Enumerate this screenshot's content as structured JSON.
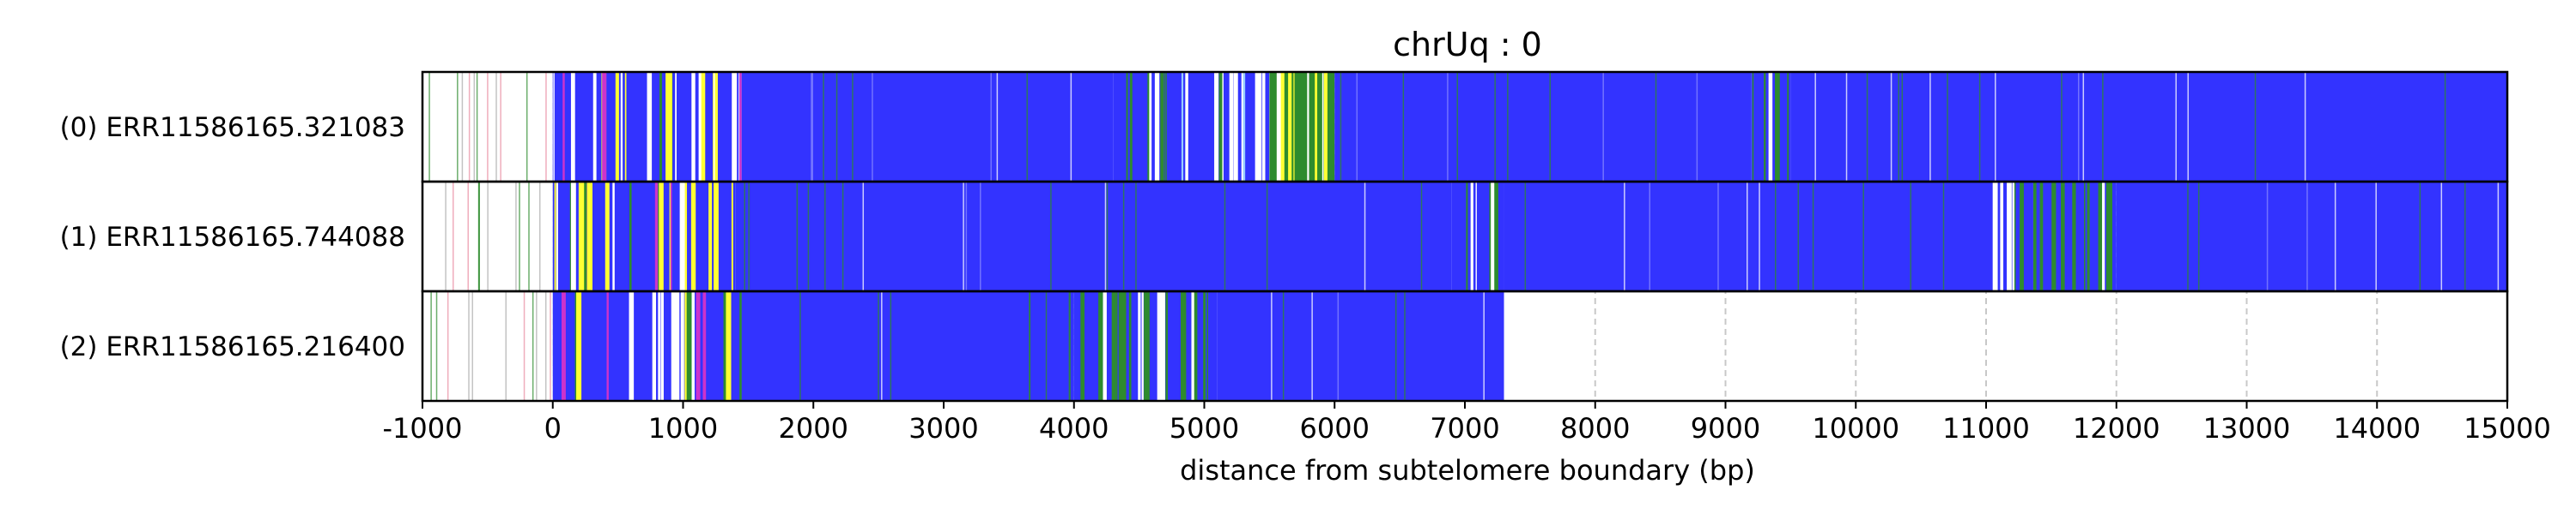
{
  "chart_data": {
    "type": "heatmap",
    "title": "chrUq : 0",
    "xlabel": "distance from subtelomere boundary (bp)",
    "ylabel": "",
    "xlim": [
      -1000,
      15000
    ],
    "xticks": [
      -1000,
      0,
      1000,
      2000,
      3000,
      4000,
      5000,
      6000,
      7000,
      8000,
      9000,
      10000,
      11000,
      12000,
      13000,
      14000,
      15000
    ],
    "grid": "vertical dashed lines at x tick positions",
    "colors": {
      "blue": "#3333ff",
      "green": "#2e8b2e",
      "yellow": "#ffff33",
      "magenta": "#cc33cc",
      "white": "#ffffff",
      "gray": "#aaaaaa"
    },
    "reads": [
      {
        "label": "(0) ERR11586165.321083",
        "start": -1000,
        "end": 15000,
        "segments": [
          {
            "from": -1000,
            "to": 0,
            "color": "white"
          },
          {
            "from": 0,
            "to": 1450,
            "color": "mixed-yellow"
          },
          {
            "from": 1450,
            "to": 4300,
            "color": "blue"
          },
          {
            "from": 4300,
            "to": 4700,
            "color": "mixed-green"
          },
          {
            "from": 4700,
            "to": 5500,
            "color": "mixed-white"
          },
          {
            "from": 5500,
            "to": 6000,
            "color": "mixed-yellow-green"
          },
          {
            "from": 6000,
            "to": 9200,
            "color": "blue"
          },
          {
            "from": 9200,
            "to": 9500,
            "color": "mixed-green"
          },
          {
            "from": 9500,
            "to": 15000,
            "color": "blue"
          }
        ]
      },
      {
        "label": "(1) ERR11586165.744088",
        "start": -1000,
        "end": 15000,
        "segments": [
          {
            "from": -1000,
            "to": 0,
            "color": "white"
          },
          {
            "from": 0,
            "to": 1400,
            "color": "mixed-yellow"
          },
          {
            "from": 1400,
            "to": 6900,
            "color": "blue"
          },
          {
            "from": 6900,
            "to": 7300,
            "color": "mixed-green"
          },
          {
            "from": 7300,
            "to": 11000,
            "color": "blue"
          },
          {
            "from": 11000,
            "to": 12000,
            "color": "mixed-green"
          },
          {
            "from": 12000,
            "to": 15000,
            "color": "blue"
          }
        ]
      },
      {
        "label": "(2) ERR11586165.216400",
        "start": -1000,
        "end": 7300,
        "segments": [
          {
            "from": -1000,
            "to": 0,
            "color": "white"
          },
          {
            "from": 0,
            "to": 1450,
            "color": "mixed-yellow"
          },
          {
            "from": 1450,
            "to": 4000,
            "color": "blue"
          },
          {
            "from": 4000,
            "to": 4650,
            "color": "mixed-green"
          },
          {
            "from": 4650,
            "to": 4700,
            "color": "white"
          },
          {
            "from": 4700,
            "to": 5100,
            "color": "mixed-green"
          },
          {
            "from": 5100,
            "to": 7300,
            "color": "blue"
          }
        ]
      }
    ]
  }
}
